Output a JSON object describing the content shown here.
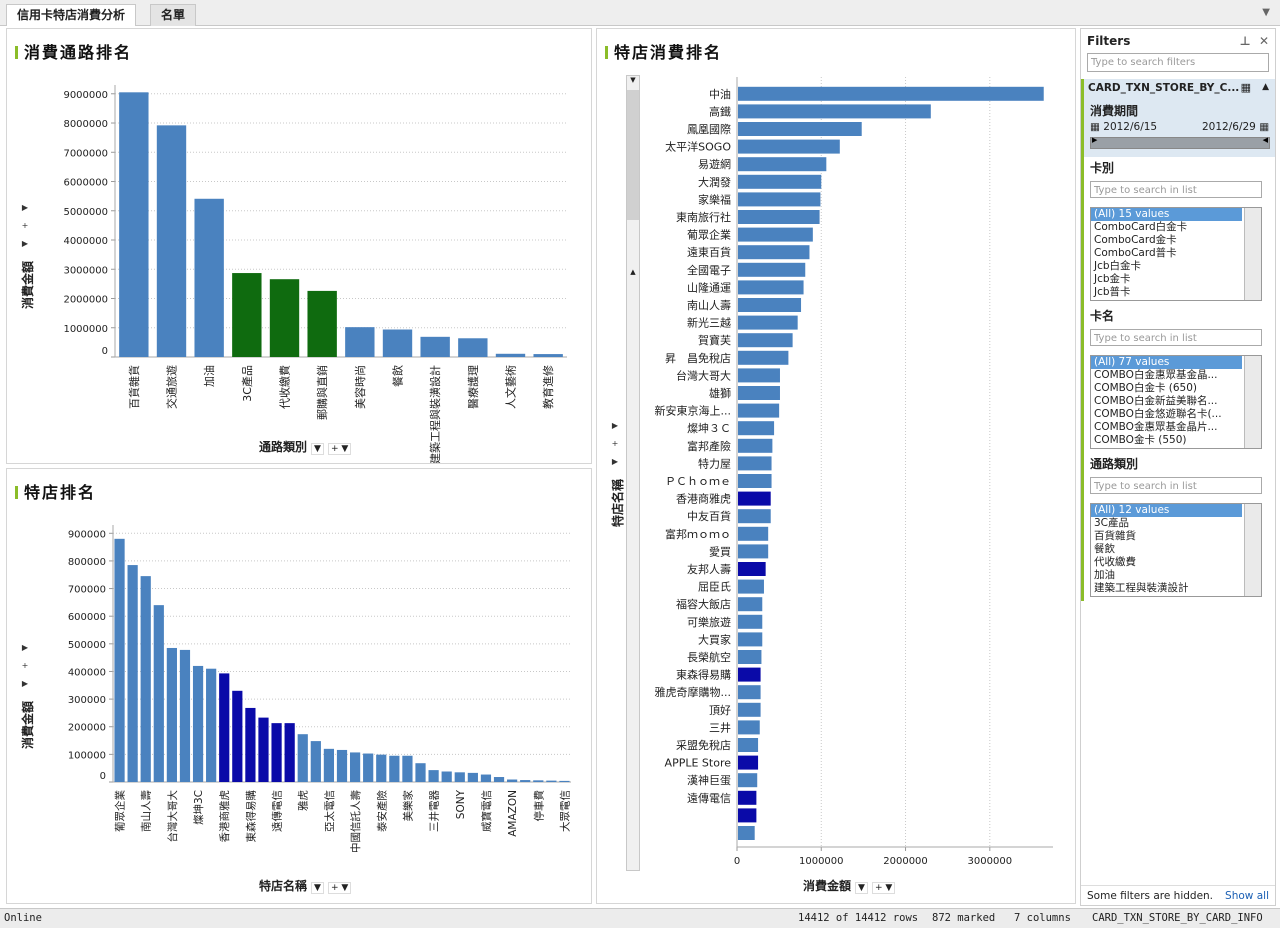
{
  "tabs": [
    {
      "label": "信用卡特店消費分析"
    },
    {
      "label": "名單"
    }
  ],
  "panels": {
    "channel": {
      "title": "消費通路排名",
      "y_axis_label": "消費金額",
      "x_axis_label": "通路類別"
    },
    "store": {
      "title": "特店排名",
      "y_axis_label": "消費金額",
      "x_axis_label": "特店名稱"
    },
    "store_consumption": {
      "title": "特店消費排名",
      "y_axis_label": "特店名稱",
      "x_axis_label": "消費金額"
    }
  },
  "chart_data": [
    {
      "type": "bar",
      "title": "消費通路排名",
      "xlabel": "通路類別",
      "ylabel": "消費金額",
      "categories": [
        "百貨雜貨",
        "交通旅遊",
        "加油",
        "3C產品",
        "代收繳費",
        "郵購與直銷",
        "美容時尚",
        "餐飲",
        "建築工程與裝潢設計",
        "醫療護理",
        "人文藝術",
        "教育進修"
      ],
      "values": [
        9050000,
        7920000,
        5410000,
        2870000,
        2660000,
        2260000,
        1020000,
        940000,
        690000,
        640000,
        110000,
        100000
      ],
      "marked": [
        false,
        false,
        false,
        true,
        true,
        true,
        false,
        false,
        false,
        false,
        false,
        false
      ],
      "yticks": [
        0,
        1000000,
        2000000,
        3000000,
        4000000,
        5000000,
        6000000,
        7000000,
        8000000,
        9000000
      ],
      "ylim": [
        0,
        9300000
      ],
      "colors": {
        "normal": "#4a82bf",
        "marked": "#0f6b0f"
      }
    },
    {
      "type": "bar",
      "title": "特店排名",
      "xlabel": "特店名稱",
      "ylabel": "消費金額",
      "categories": [
        "葡眾企業",
        "",
        "南山人壽",
        "",
        "台灣大哥大",
        "",
        "燦坤3C",
        "",
        "香港商雅虎",
        "",
        "東森得易購",
        "",
        "遠傳電信",
        "",
        "雅虎",
        "",
        "亞太電信",
        "",
        "中國信託人壽",
        "",
        "泰安產險",
        "",
        "美樂家",
        "",
        "三井電器",
        "",
        "SONY",
        "",
        "威寶電信",
        "",
        "AMAZON",
        "",
        "停車費",
        "",
        "大眾電信"
      ],
      "values": [
        880000,
        785000,
        745000,
        640000,
        485000,
        478000,
        420000,
        410000,
        393000,
        330000,
        268000,
        233000,
        213000,
        213000,
        173000,
        148000,
        120000,
        116000,
        107000,
        103000,
        99000,
        95000,
        95000,
        68000,
        43000,
        38000,
        35000,
        33000,
        27000,
        18000,
        9000,
        7000,
        6000,
        5000,
        4000
      ],
      "marked": [
        false,
        false,
        false,
        false,
        false,
        false,
        false,
        false,
        true,
        true,
        true,
        true,
        true,
        true,
        false,
        false,
        false,
        false,
        false,
        false,
        false,
        false,
        false,
        false,
        false,
        false,
        false,
        false,
        false,
        false,
        false,
        false,
        false,
        false,
        false
      ],
      "yticks": [
        0,
        100000,
        200000,
        300000,
        400000,
        500000,
        600000,
        700000,
        800000,
        900000
      ],
      "ylim": [
        0,
        930000
      ],
      "colors": {
        "normal": "#4a82bf",
        "marked": "#0a0aa8"
      }
    },
    {
      "type": "bar",
      "orientation": "horizontal",
      "title": "特店消費排名",
      "xlabel": "消費金額",
      "ylabel": "特店名稱",
      "categories": [
        "中油",
        "高鐵",
        "鳳凰國際",
        "太平洋SOGO",
        "易遊網",
        "大潤發",
        "家樂福",
        "東南旅行社",
        "葡眾企業",
        "遠東百貨",
        "全國電子",
        "山隆通運",
        "南山人壽",
        "新光三越",
        "賀寶芙",
        "昇　昌免稅店",
        "台灣大哥大",
        "雄獅",
        "新安東京海上...",
        "燦坤３Ｃ",
        "富邦產險",
        "特力屋",
        "ＰＣｈｏｍｅ",
        "香港商雅虎",
        "中友百貨",
        "富邦ｍｏｍｏ",
        "愛買",
        "友邦人壽",
        "屈臣氏",
        "福容大飯店",
        "可樂旅遊",
        "大買家",
        "長榮航空",
        "東森得易購",
        "雅虎奇摩購物...",
        "頂好",
        "三井",
        "采盟免稅店",
        "APPLE Store",
        "漢神巨蛋",
        "遠傳電信",
        "",
        ""
      ],
      "values": [
        3640000,
        2300000,
        1480000,
        1220000,
        1060000,
        1000000,
        990000,
        980000,
        900000,
        860000,
        810000,
        790000,
        760000,
        720000,
        660000,
        610000,
        510000,
        510000,
        500000,
        440000,
        420000,
        410000,
        410000,
        400000,
        400000,
        370000,
        370000,
        340000,
        320000,
        300000,
        300000,
        300000,
        290000,
        280000,
        280000,
        280000,
        270000,
        250000,
        250000,
        240000,
        230000,
        230000,
        210000
      ],
      "marked": [
        false,
        false,
        false,
        false,
        false,
        false,
        false,
        false,
        false,
        false,
        false,
        false,
        false,
        false,
        false,
        false,
        false,
        false,
        false,
        false,
        false,
        false,
        false,
        true,
        false,
        false,
        false,
        true,
        false,
        false,
        false,
        false,
        false,
        true,
        false,
        false,
        false,
        false,
        true,
        false,
        true,
        true,
        false
      ],
      "xticks": [
        0,
        1000000,
        2000000,
        3000000
      ],
      "xlim": [
        0,
        3750000
      ],
      "colors": {
        "normal": "#4a82bf",
        "marked": "#0a0aa8"
      }
    }
  ],
  "filters": {
    "title": "Filters",
    "table_name": "CARD_TXN_STORE_BY_C...",
    "period": {
      "label": "消費期間",
      "start": "2012/6/15",
      "end": "2012/6/29"
    },
    "card_type": {
      "label": "卡別",
      "placeholder": "Type to search in list",
      "items": [
        "(All) 15 values",
        "ComboCard白金卡",
        "ComboCard金卡",
        "ComboCard普卡",
        "Jcb白金卡",
        "Jcb金卡",
        "Jcb普卡"
      ]
    },
    "card_name": {
      "label": "卡名",
      "placeholder": "Type to search in list",
      "items": [
        "(All) 77 values",
        "COMBO白金惠眾基金晶...",
        "COMBO白金卡 (650)",
        "COMBO白金新益美聯名...",
        "COMBO白金悠遊聯名卡(...",
        "COMBO金惠眾基金晶片...",
        "COMBO金卡 (550)"
      ]
    },
    "channel_type": {
      "label": "通路類別",
      "placeholder": "Type to search in list",
      "items": [
        "(All) 12 values",
        "3C產品",
        "百貨雜貨",
        "餐飲",
        "代收繳費",
        "加油",
        "建築工程與裝潢設計"
      ]
    },
    "search_placeholder": "Type to search filters",
    "footer_note": "Some filters are hidden.",
    "show_all": "Show all"
  },
  "status": {
    "state": "Online",
    "rows": "14412 of 14412 rows",
    "marked": "872 marked",
    "columns": "7 columns",
    "table": "CARD_TXN_STORE_BY_CARD_INFO"
  }
}
